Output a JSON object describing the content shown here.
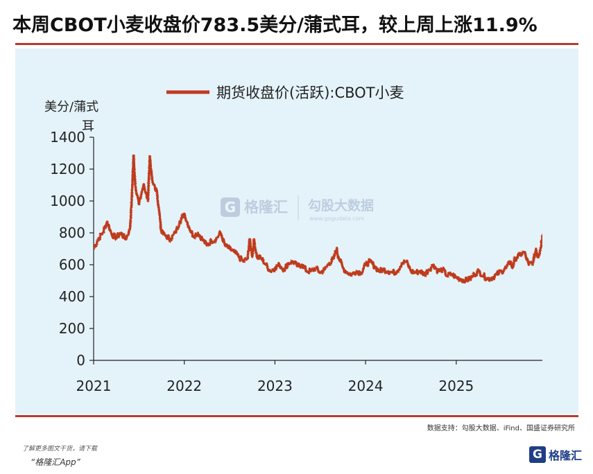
{
  "title": "本周CBOT小麦收盘价783.5美分/蒲式耳，较上周上涨11.9%",
  "source": "数据支持：勾股大数据、iFind、国盛证券研究所",
  "footer": {
    "line1": "了解更多图文干货，请下载",
    "line2": "“格隆汇App”"
  },
  "logo": {
    "mark": "G",
    "text": "格隆汇"
  },
  "watermark": {
    "brand1": "格隆汇",
    "brand2": "勾股大数据",
    "url": "www.gogudata.com"
  },
  "colors": {
    "line": "#bf3a1e",
    "panel": "#e4f3fa",
    "rule": "#b8392e",
    "logo": "#1f3e86"
  },
  "chart_data": {
    "type": "line",
    "ylabel": "美分/蒲式耳",
    "ylim": [
      0,
      1400
    ],
    "yticks": [
      0,
      200,
      400,
      600,
      800,
      1000,
      1200,
      1400
    ],
    "xticks": [
      "2021",
      "2022",
      "2023",
      "2024",
      "2025"
    ],
    "xlim": [
      2021.0,
      2025.95
    ],
    "grid": false,
    "legend_position": "top",
    "series": [
      {
        "name": "期货收盘价(活跃):CBOT小麦",
        "x": [
          2021.0,
          2021.05,
          2021.1,
          2021.15,
          2021.2,
          2021.25,
          2021.3,
          2021.35,
          2021.4,
          2021.42,
          2021.44,
          2021.46,
          2021.5,
          2021.55,
          2021.58,
          2021.6,
          2021.62,
          2021.65,
          2021.7,
          2021.75,
          2021.8,
          2021.85,
          2021.9,
          2021.95,
          2022.0,
          2022.05,
          2022.1,
          2022.15,
          2022.2,
          2022.25,
          2022.3,
          2022.35,
          2022.4,
          2022.45,
          2022.5,
          2022.55,
          2022.6,
          2022.65,
          2022.7,
          2022.72,
          2022.75,
          2022.77,
          2022.8,
          2022.85,
          2022.9,
          2022.95,
          2023.0,
          2023.05,
          2023.1,
          2023.15,
          2023.2,
          2023.25,
          2023.3,
          2023.35,
          2023.4,
          2023.45,
          2023.5,
          2023.55,
          2023.6,
          2023.65,
          2023.68,
          2023.7,
          2023.75,
          2023.8,
          2023.85,
          2023.9,
          2023.95,
          2024.0,
          2024.05,
          2024.1,
          2024.15,
          2024.2,
          2024.25,
          2024.3,
          2024.35,
          2024.4,
          2024.45,
          2024.5,
          2024.55,
          2024.6,
          2024.65,
          2024.7,
          2024.75,
          2024.8,
          2024.85,
          2024.9,
          2024.95,
          2025.0,
          2025.05,
          2025.1,
          2025.15,
          2025.2,
          2025.25,
          2025.3,
          2025.35,
          2025.4,
          2025.45,
          2025.5,
          2025.55,
          2025.6,
          2025.62,
          2025.65,
          2025.7,
          2025.75,
          2025.8,
          2025.85,
          2025.88,
          2025.9,
          2025.93,
          2025.95
        ],
        "values": [
          700,
          760,
          800,
          870,
          790,
          770,
          800,
          760,
          820,
          1000,
          1290,
          1100,
          980,
          1100,
          1050,
          1000,
          1280,
          1120,
          1050,
          800,
          780,
          760,
          800,
          870,
          920,
          840,
          780,
          800,
          760,
          720,
          750,
          760,
          800,
          720,
          700,
          680,
          650,
          620,
          640,
          760,
          650,
          760,
          650,
          640,
          600,
          560,
          580,
          600,
          570,
          610,
          620,
          590,
          600,
          560,
          560,
          580,
          550,
          570,
          610,
          640,
          700,
          650,
          580,
          550,
          540,
          560,
          550,
          600,
          620,
          590,
          560,
          570,
          560,
          550,
          560,
          610,
          620,
          560,
          550,
          560,
          540,
          570,
          600,
          560,
          570,
          530,
          540,
          520,
          510,
          500,
          510,
          540,
          560,
          530,
          510,
          520,
          540,
          560,
          580,
          620,
          580,
          640,
          660,
          680,
          600,
          620,
          700,
          650,
          700,
          783.5
        ]
      }
    ]
  }
}
